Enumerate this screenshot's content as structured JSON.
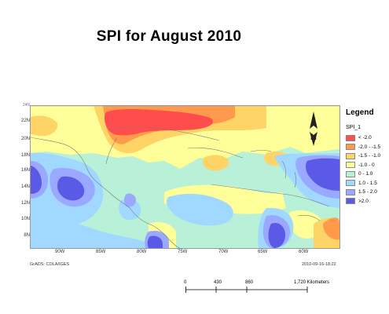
{
  "title": "SPI for  August 2010",
  "map": {
    "lat_labels": [
      "22N",
      "20N",
      "18N",
      "16N",
      "14N",
      "12N",
      "10N",
      "8N"
    ],
    "lon_labels": [
      "90W",
      "85W",
      "80W",
      "75W",
      "70W",
      "65W",
      "60W"
    ],
    "top_partial_label": "24N",
    "credit_left": "GrADS: COLA/IGES",
    "credit_right": "2010-09-16-18:22"
  },
  "legend": {
    "title": "Legend",
    "layer": "SPI_1",
    "items": [
      {
        "label": "< -2.0",
        "color": "#ff4d4d"
      },
      {
        "label": "-2.0 - -1.5",
        "color": "#ff9a4d"
      },
      {
        "label": "-1.5 - -1.0",
        "color": "#ffd466"
      },
      {
        "label": "-1.0 - 0",
        "color": "#ffff99"
      },
      {
        "label": "0 - 1.0",
        "color": "#b8f0d8"
      },
      {
        "label": "1.0 - 1.5",
        "color": "#a0d8ff"
      },
      {
        "label": "1.5 - 2.0",
        "color": "#9aa8ff"
      },
      {
        "label": ">2.0",
        "color": "#5a5ae6"
      }
    ]
  },
  "scale": {
    "labels": [
      "0",
      "430",
      "860",
      "1,720 Kilometers"
    ]
  }
}
